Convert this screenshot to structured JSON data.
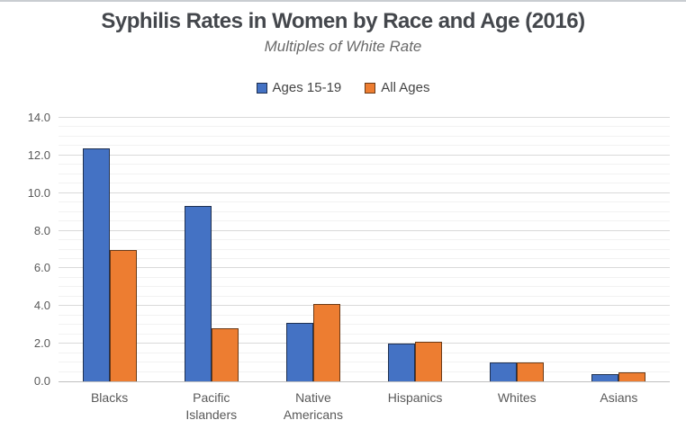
{
  "chart_data": {
    "type": "bar",
    "title": "Syphilis Rates in Women by Race and Age (2016)",
    "subtitle": "Multiples of White Rate",
    "categories": [
      "Blacks",
      "Pacific Islanders",
      "Native Americans",
      "Hispanics",
      "Whites",
      "Asians"
    ],
    "series": [
      {
        "name": "Ages 15-19",
        "color": "#4472C4",
        "border_color": "#1F3050",
        "values": [
          12.4,
          9.3,
          3.1,
          2.0,
          1.0,
          0.4
        ]
      },
      {
        "name": "All Ages",
        "color": "#ED7D31",
        "border_color": "#6B3A16",
        "values": [
          7.0,
          2.8,
          4.1,
          2.1,
          1.0,
          0.5
        ]
      }
    ],
    "xlabel": "",
    "ylabel": "",
    "ylim": [
      0,
      14
    ],
    "y_major_step": 2.0,
    "y_minor_step": 0.5,
    "y_tick_labels": [
      "0.0",
      "2.0",
      "4.0",
      "6.0",
      "8.0",
      "10.0",
      "12.0",
      "14.0"
    ],
    "grid": "on",
    "legend_position": "top",
    "colors": {
      "title_text": "#44474C",
      "subtitle_text": "#6A6A6A",
      "axis_text": "#595959",
      "major_gridline": "#D9D9D9",
      "minor_gridline": "#F2F2F2",
      "axis_line": "#BFBFBF",
      "background": "#FFFFFF"
    }
  }
}
